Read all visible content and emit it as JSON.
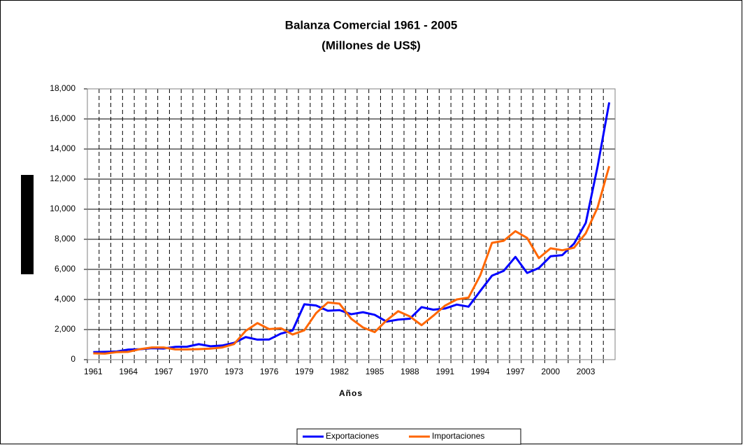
{
  "chart_data": {
    "type": "line",
    "title": "Balanza Comercial 1961 - 2005",
    "subtitle": "(Millones de US$)",
    "x_label": "Años",
    "categories": [
      "1961",
      null,
      null,
      "1964",
      null,
      null,
      "1967",
      null,
      null,
      "1970",
      null,
      null,
      "1973",
      null,
      null,
      "1976",
      null,
      null,
      "1979",
      null,
      null,
      "1982",
      null,
      null,
      "1985",
      null,
      null,
      "1988",
      null,
      null,
      "1991",
      null,
      null,
      "1994",
      null,
      null,
      "1997",
      null,
      null,
      "2000",
      null,
      null,
      "2003",
      null,
      null
    ],
    "series": [
      {
        "name": "Exportaciones",
        "color": "#0000ff",
        "values": [
          500,
          520,
          540,
          670,
          690,
          760,
          740,
          850,
          860,
          1030,
          890,
          940,
          1110,
          1500,
          1330,
          1340,
          1730,
          1940,
          3680,
          3600,
          3250,
          3290,
          3020,
          3150,
          2980,
          2530,
          2660,
          2720,
          3490,
          3320,
          3400,
          3660,
          3520,
          4560,
          5580,
          5900,
          6830,
          5760,
          6090,
          6870,
          6950,
          7710,
          9090,
          12810,
          17100
        ]
      },
      {
        "name": "Importaciones",
        "color": "#ff6600",
        "values": [
          420,
          400,
          500,
          520,
          700,
          810,
          810,
          680,
          680,
          700,
          730,
          810,
          1030,
          1910,
          2430,
          2030,
          2090,
          1670,
          1950,
          3090,
          3800,
          3720,
          2720,
          2140,
          1830,
          2600,
          3220,
          2870,
          2290,
          2920,
          3590,
          4000,
          4120,
          5600,
          7760,
          7900,
          8540,
          8090,
          6750,
          7400,
          7270,
          7440,
          8400,
          10100,
          12860
        ]
      }
    ],
    "ylim": [
      0,
      18000
    ],
    "yticks": [
      0,
      {
        "value": 2000,
        "label": "2,000"
      },
      {
        "value": 4000,
        "label": "4,000"
      },
      {
        "value": 6000,
        "label": "6,000"
      },
      {
        "value": 8000,
        "label": "8,000"
      },
      {
        "value": 10000,
        "label": "10,000"
      },
      {
        "value": 12000,
        "label": "12,000"
      },
      {
        "value": 14000,
        "label": "14,000"
      },
      {
        "value": 16000,
        "label": "16,000"
      },
      {
        "value": 18000,
        "label": "18,000"
      }
    ],
    "grid": true,
    "legend": "bottom"
  }
}
